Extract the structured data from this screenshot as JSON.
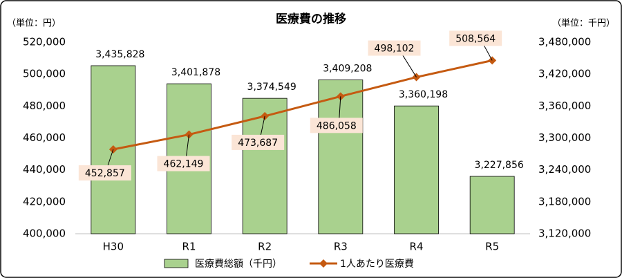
{
  "chart_data": {
    "type": "bar",
    "title": "医療費の推移",
    "y_unit": "（単位：円）",
    "y2_unit": "（単位：千円）",
    "categories": [
      "H30",
      "R1",
      "R2",
      "R3",
      "R4",
      "R5"
    ],
    "series": [
      {
        "name": "医療費総額（千円）",
        "type": "bar",
        "axis": "y2",
        "color": "#a9d18e",
        "values": [
          3435828,
          3401878,
          3374549,
          3409208,
          3360198,
          3227856
        ],
        "value_labels": [
          "3,435,828",
          "3,401,878",
          "3,374,549",
          "3,409,208",
          "3,360,198",
          "3,227,856"
        ]
      },
      {
        "name": "1人あたり医療費",
        "type": "line",
        "color": "#c55a11",
        "values": [
          452857,
          462149,
          473687,
          486058,
          498102,
          508564
        ],
        "value_labels": [
          "452,857",
          "462,149",
          "473,687",
          "486,058",
          "498,102",
          "508,564"
        ]
      }
    ],
    "ylim": [
      400000,
      520000
    ],
    "yticks": [
      {
        "value": 400000,
        "label": "400,000"
      },
      {
        "value": 420000,
        "label": "420,000"
      },
      {
        "value": 440000,
        "label": "440,000"
      },
      {
        "value": 460000,
        "label": "460,000"
      },
      {
        "value": 480000,
        "label": "480,000"
      },
      {
        "value": 500000,
        "label": "500,000"
      },
      {
        "value": 520000,
        "label": "520,000"
      }
    ],
    "y2lim": [
      3120000,
      3480000
    ],
    "y2ticks": [
      {
        "value": 3120000,
        "label": "3,120,000"
      },
      {
        "value": 3180000,
        "label": "3,180,000"
      },
      {
        "value": 3240000,
        "label": "3,240,000"
      },
      {
        "value": 3300000,
        "label": "3,300,000"
      },
      {
        "value": 3360000,
        "label": "3,360,000"
      },
      {
        "value": 3420000,
        "label": "3,420,000"
      },
      {
        "value": 3480000,
        "label": "3,480,000"
      }
    ],
    "legend": "bottom"
  }
}
